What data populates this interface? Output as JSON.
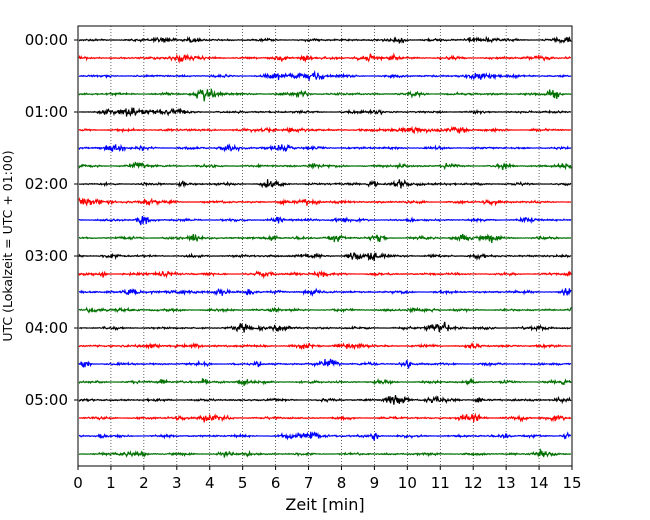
{
  "chart_data": {
    "type": "line",
    "title": "",
    "xlabel": "Zeit  [min]",
    "ylabel": "UTC (Lokalzeit = UTC + 01:00)",
    "xlim": [
      0,
      15
    ],
    "x_ticks": [
      "0",
      "1",
      "2",
      "3",
      "4",
      "5",
      "6",
      "7",
      "8",
      "9",
      "10",
      "11",
      "12",
      "13",
      "14",
      "15"
    ],
    "y_tick_labels": [
      "00:00",
      "01:00",
      "02:00",
      "03:00",
      "04:00",
      "05:00"
    ],
    "trace_count": 24,
    "trace_interval_min": 15,
    "trace_colors": [
      "#000000",
      "#ff0000",
      "#0000ff",
      "#007000"
    ],
    "grid": {
      "x": "dotted",
      "y": "none"
    }
  }
}
